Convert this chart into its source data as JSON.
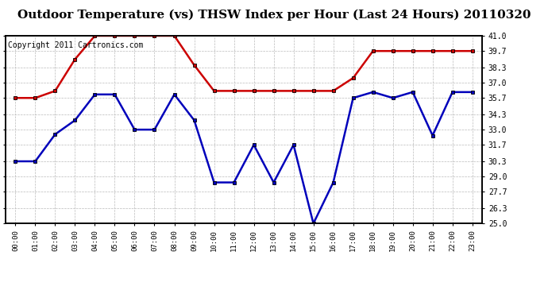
{
  "title": "Outdoor Temperature (vs) THSW Index per Hour (Last 24 Hours) 20110320",
  "copyright_text": "Copyright 2011 Cartronics.com",
  "hours": [
    "00:00",
    "01:00",
    "02:00",
    "03:00",
    "04:00",
    "05:00",
    "06:00",
    "07:00",
    "08:00",
    "09:00",
    "10:00",
    "11:00",
    "12:00",
    "13:00",
    "14:00",
    "15:00",
    "16:00",
    "17:00",
    "18:00",
    "19:00",
    "20:00",
    "21:00",
    "22:00",
    "23:00"
  ],
  "blue_temp": [
    30.3,
    30.3,
    32.6,
    33.8,
    36.0,
    36.0,
    33.0,
    33.0,
    36.0,
    33.8,
    28.5,
    28.5,
    31.7,
    28.5,
    31.7,
    25.0,
    28.5,
    35.7,
    36.2,
    35.7,
    36.2,
    32.5,
    36.2,
    36.2
  ],
  "red_thsw": [
    35.7,
    35.7,
    36.3,
    39.0,
    41.0,
    41.0,
    41.0,
    41.0,
    41.0,
    38.5,
    36.3,
    36.3,
    36.3,
    36.3,
    36.3,
    36.3,
    36.3,
    37.4,
    39.7,
    39.7,
    39.7,
    39.7,
    39.7,
    39.7
  ],
  "blue_color": "#0000bb",
  "red_color": "#cc0000",
  "bg_color": "#ffffff",
  "grid_color": "#bbbbbb",
  "ylim": [
    25.0,
    41.0
  ],
  "yticks": [
    25.0,
    26.3,
    27.7,
    29.0,
    30.3,
    31.7,
    33.0,
    34.3,
    35.7,
    37.0,
    38.3,
    39.7,
    41.0
  ],
  "title_fontsize": 11,
  "copyright_fontsize": 7,
  "markersize": 3.5
}
